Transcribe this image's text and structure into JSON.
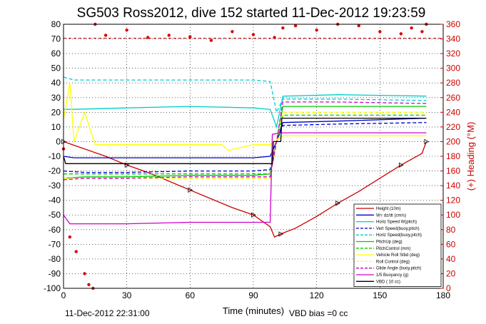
{
  "chart_data": {
    "type": "line",
    "title": "SG503 Ross2012, dive 152 started 11-Dec-2012 19:23:59",
    "xlabel": "Time (minutes)",
    "ylabel_right": "(+) Heading (°M)",
    "xlim": [
      0,
      180
    ],
    "ylim": [
      -100,
      80
    ],
    "y2lim": [
      0,
      360
    ],
    "x_ticks": [
      "0",
      "30",
      "60",
      "90",
      "120",
      "150",
      "180"
    ],
    "y_ticks": [
      "80",
      "70",
      "60",
      "50",
      "40",
      "30",
      "20",
      "10",
      "0",
      "-10",
      "-20",
      "-30",
      "-40",
      "-50",
      "-60",
      "-70",
      "-80",
      "-90",
      "-100"
    ],
    "y2_ticks": [
      "360",
      "340",
      "320",
      "300",
      "280",
      "260",
      "240",
      "220",
      "200",
      "180",
      "160",
      "140",
      "120",
      "100",
      "80",
      "60",
      "40",
      "20",
      "0"
    ],
    "grid": true,
    "legend_position": "bottom-right",
    "footer_left": "11-Dec-2012 22:31:00",
    "footer_right": "VBD bias =0 cc",
    "reference_line_y2": 341,
    "series": [
      {
        "name": "Height (10m)",
        "color": "#cc0000",
        "style": "solid",
        "marker": "triangle",
        "x": [
          0,
          10,
          20,
          30,
          40,
          50,
          60,
          70,
          80,
          90,
          98,
          100,
          103,
          110,
          120,
          130,
          140,
          150,
          160,
          170,
          172
        ],
        "y": [
          0,
          -5,
          -10,
          -16,
          -21,
          -27,
          -33,
          -39,
          -45,
          -50,
          -58,
          -65,
          -63,
          -59,
          -51,
          -42,
          -34,
          -25,
          -16,
          -8,
          0
        ]
      },
      {
        "name": "W= dz/dt (cm/s)",
        "color": "#0000cc",
        "style": "solid",
        "x": [
          0,
          5,
          30,
          60,
          90,
          98,
          101,
          104,
          130,
          172
        ],
        "y": [
          -10,
          -11,
          -11,
          -11,
          -11,
          -10,
          0,
          13,
          14,
          16
        ]
      },
      {
        "name": "Horiz Speed W(pitch)",
        "color": "#00cccc",
        "style": "solid",
        "x": [
          0,
          5,
          30,
          60,
          90,
          98,
          101,
          104,
          130,
          172
        ],
        "y": [
          22,
          22,
          23,
          24,
          23,
          22,
          10,
          31,
          32,
          31
        ]
      },
      {
        "name": "Vert Speed(buoy,pitch)",
        "color": "#0000cc",
        "style": "dashed",
        "x": [
          0,
          10,
          30,
          60,
          90,
          98,
          101,
          104,
          130,
          172
        ],
        "y": [
          -20,
          -21,
          -21,
          -20,
          -20,
          -19,
          0,
          11,
          12,
          13
        ]
      },
      {
        "name": "Horiz Speed(buoy,pitch)",
        "color": "#00cccc",
        "style": "dashed",
        "x": [
          0,
          5,
          30,
          60,
          90,
          98,
          101,
          104,
          130,
          172
        ],
        "y": [
          44,
          42,
          42,
          42,
          42,
          41,
          20,
          29,
          29,
          28
        ]
      },
      {
        "name": "PitchUp (deg)",
        "color": "#00cc00",
        "style": "solid",
        "x": [
          0,
          10,
          30,
          60,
          90,
          98,
          101,
          104,
          130,
          172
        ],
        "y": [
          -25,
          -24,
          -24,
          -23,
          -23,
          -22,
          0,
          24,
          24,
          24
        ]
      },
      {
        "name": "PitchControl (mm)",
        "color": "#00cc00",
        "style": "dashed",
        "x": [
          0,
          10,
          30,
          60,
          90,
          98,
          101,
          104,
          172
        ],
        "y": [
          -22,
          -22,
          -22,
          -22,
          -22,
          -22,
          0,
          18,
          18
        ]
      },
      {
        "name": "Vehicle Roll Stbd (deg)",
        "color": "#ffff00",
        "style": "solid",
        "x": [
          0,
          3,
          5,
          10,
          15,
          30,
          60,
          75,
          78,
          90,
          98,
          100,
          104,
          140,
          172
        ],
        "y": [
          15,
          40,
          0,
          20,
          -2,
          -2,
          -2,
          -2,
          -6,
          -2,
          -2,
          0,
          4,
          4,
          4
        ]
      },
      {
        "name": "Roll Control (deg)",
        "color": "#ffff00",
        "style": "dashed",
        "x": [
          0,
          10,
          30,
          60,
          90,
          98,
          101,
          104,
          172
        ],
        "y": [
          -25,
          -25,
          -25,
          -25,
          -25,
          -25,
          0,
          20,
          20
        ]
      },
      {
        "name": "Glide Angle (buoy,pitch)",
        "color": "#cc00cc",
        "style": "dashed",
        "x": [
          0,
          10,
          30,
          60,
          90,
          98,
          101,
          104,
          130,
          172
        ],
        "y": [
          -26,
          -25,
          -25,
          -24,
          -24,
          -24,
          0,
          27,
          27,
          26
        ]
      },
      {
        "name": "1/5 Buoyancy (g)",
        "color": "#cc00cc",
        "style": "solid",
        "x": [
          0,
          3,
          10,
          30,
          60,
          90,
          98,
          99,
          103,
          172
        ],
        "y": [
          -50,
          -56,
          -56,
          -56,
          -55,
          -55,
          -55,
          5,
          6,
          6
        ]
      },
      {
        "name": "VBD ( 10 cc)",
        "color": "#000000",
        "style": "solid",
        "x": [
          0,
          1,
          99,
          99.5,
          103,
          103.5,
          172
        ],
        "y": [
          -10,
          -15,
          -15,
          0,
          0,
          16,
          16
        ]
      },
      {
        "name": "Heading",
        "axis": "right",
        "color": "#dd0000",
        "style": "dots",
        "x": [
          0,
          3,
          6,
          10,
          12,
          14,
          15,
          20,
          30,
          40,
          50,
          60,
          70,
          80,
          90,
          100,
          104,
          110,
          120,
          130,
          140,
          150,
          160,
          165,
          170,
          172
        ],
        "y": [
          190,
          70,
          50,
          20,
          5,
          0,
          360,
          345,
          352,
          342,
          345,
          343,
          338,
          350,
          346,
          342,
          355,
          358,
          352,
          360,
          358,
          350,
          347,
          355,
          350,
          360
        ]
      }
    ]
  }
}
